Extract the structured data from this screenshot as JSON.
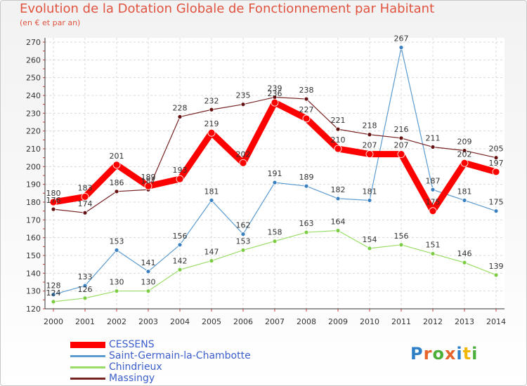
{
  "title": "Evolution de la Dotation Globale de Fonctionnement par Habitant",
  "subtitle": "(en € et par an)",
  "logo": {
    "text": "Proxiti",
    "colors": [
      "#2e7fc6",
      "#e6632b",
      "#4caf3a",
      "#e6632b",
      "#2e7fc6",
      "#f2b705",
      "#4caf3a"
    ]
  },
  "chart_data": {
    "type": "line",
    "x": [
      "2000",
      "2001",
      "2002",
      "2003",
      "2004",
      "2005",
      "2006",
      "2007",
      "2008",
      "2009",
      "2010",
      "2011",
      "2012",
      "2013",
      "2014"
    ],
    "ylim": [
      120,
      270
    ],
    "yticks": [
      120,
      130,
      140,
      150,
      160,
      170,
      180,
      190,
      200,
      210,
      220,
      230,
      240,
      250,
      260,
      270
    ],
    "grid": true,
    "legend_position": "bottom-left",
    "series": [
      {
        "name": "Saint-Germain-la-Chambotte",
        "color": "#5b9bd0",
        "values": [
          128,
          133,
          153,
          141,
          156,
          181,
          162,
          191,
          189,
          182,
          181,
          267,
          187,
          181,
          175
        ]
      },
      {
        "name": "Chindrieux",
        "color": "#99dd66",
        "values": [
          124,
          126,
          130,
          130,
          142,
          147,
          153,
          158,
          163,
          164,
          154,
          156,
          151,
          146,
          139
        ]
      },
      {
        "name": "Massingy",
        "color": "#772222",
        "values": [
          176,
          174,
          186,
          187,
          228,
          232,
          235,
          239,
          238,
          221,
          218,
          216,
          211,
          209,
          205
        ]
      },
      {
        "name": "CESSENS",
        "color": "#ff0000",
        "values": [
          180,
          183,
          201,
          189,
          193,
          219,
          202,
          236,
          227,
          210,
          207,
          207,
          175,
          202,
          197
        ]
      }
    ],
    "legend_order": [
      "CESSENS",
      "Saint-Germain-la-Chambotte",
      "Chindrieux",
      "Massingy"
    ]
  }
}
